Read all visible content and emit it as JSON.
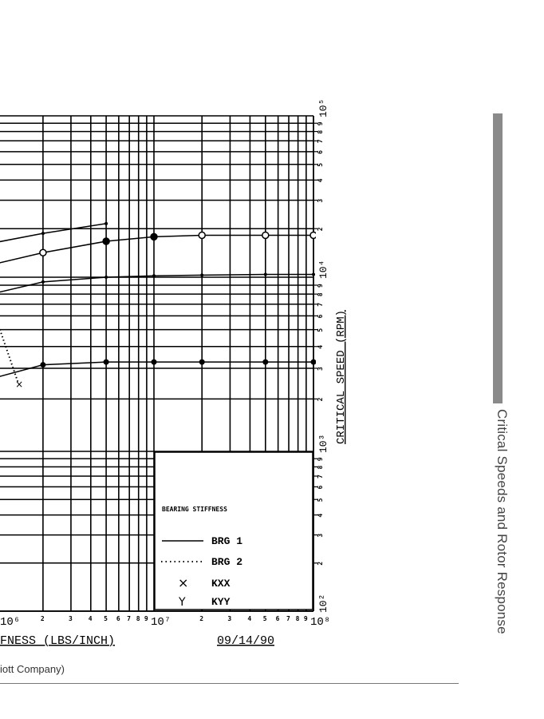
{
  "page": {
    "running_head": "Critical Speeds and Rotor Response",
    "caption_fragment": "iott Company)"
  },
  "chart_data": {
    "type": "line",
    "x_scale": "log",
    "y_scale": "log",
    "xlabel": "FNESS (LBS/INCH)",
    "ylabel": "CRITICAL SPEED (RPM)",
    "date": "09/14/90",
    "xlim": [
      1000000,
      100000000
    ],
    "ylim": [
      100,
      100000
    ],
    "grid": true,
    "x_tick_labels": {
      "decades": [
        "10⁶",
        "10⁷",
        "10⁸"
      ],
      "minor": [
        "2",
        "3",
        "4",
        "5",
        "6",
        "7",
        "8",
        "9"
      ]
    },
    "y_tick_labels": {
      "decades": [
        "10²",
        "10³",
        "10⁴",
        "10⁵"
      ],
      "minor": [
        "2",
        "3",
        "4",
        "5",
        "6",
        "7",
        "8",
        "9"
      ]
    },
    "legend": {
      "title": "BEARING STIFFNESS",
      "placement": "bottom-right",
      "entries": [
        {
          "symbol": "———",
          "label": "BRG 1"
        },
        {
          "symbol": "········",
          "label": "BRG 2"
        },
        {
          "symbol": "×",
          "label": "KXX"
        },
        {
          "symbol": "Y",
          "label": "KYY"
        }
      ]
    },
    "series": [
      {
        "style": "solid",
        "marker": "dot",
        "x": [
          1000000,
          2000000,
          5000000
        ],
        "y": [
          16400,
          18700,
          21500
        ]
      },
      {
        "style": "solid",
        "marker": "circle",
        "x": [
          1000000,
          2000000,
          5000000,
          10000000,
          20000000,
          50000000,
          100000000
        ],
        "y": [
          12100,
          14200,
          16700,
          17800,
          18200,
          18200,
          18200
        ]
      },
      {
        "style": "solid",
        "marker": "dot",
        "x": [
          1000000,
          2000000,
          5000000,
          10000000,
          20000000,
          50000000,
          100000000
        ],
        "y": [
          8100,
          9400,
          10000,
          10200,
          10300,
          10400,
          10400
        ]
      },
      {
        "style": "solid",
        "marker": "filled-circle",
        "x": [
          1000000,
          2000000,
          5000000,
          10000000,
          20000000,
          50000000,
          100000000
        ],
        "y": [
          2650,
          3140,
          3260,
          3260,
          3260,
          3260,
          3260
        ]
      },
      {
        "style": "dotted",
        "marker": "x",
        "x": [
          1000000,
          1400000
        ],
        "y": [
          6000,
          2450
        ]
      }
    ]
  }
}
